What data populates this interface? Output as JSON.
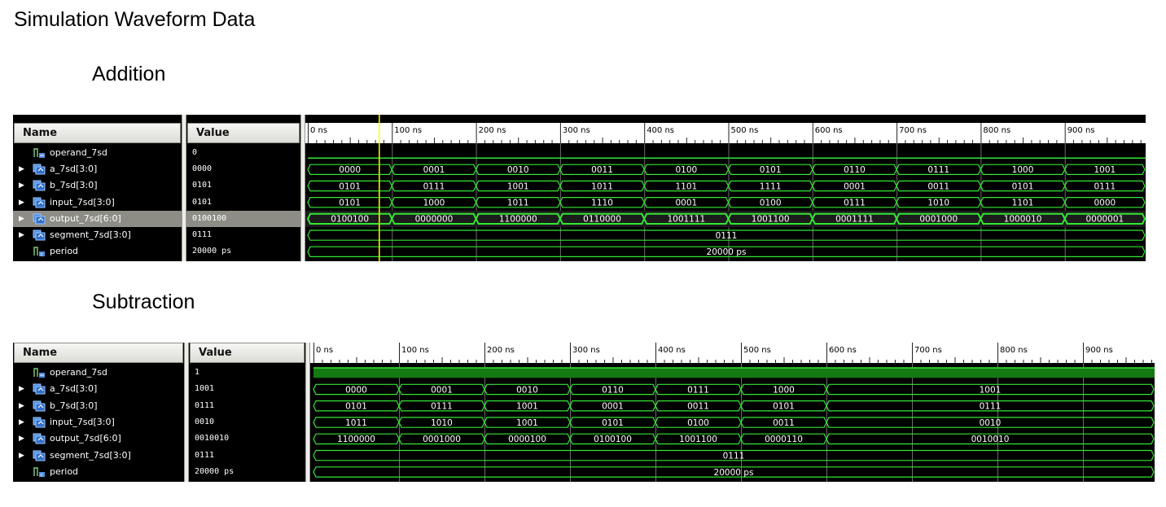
{
  "document_title": "Simulation Waveform Data",
  "columns": {
    "name": "Name",
    "value": "Value"
  },
  "timeline": [
    "0 ns",
    "100 ns",
    "200 ns",
    "300 ns",
    "400 ns",
    "500 ns",
    "600 ns",
    "700 ns",
    "800 ns",
    "900 ns"
  ],
  "colors": {
    "waveform": "#33e633",
    "cursor": "#ffff00",
    "background": "#000000",
    "grid": "#6e6e6e"
  },
  "panels": [
    {
      "id": "addition",
      "title": "Addition",
      "cursor_time_ns": 85,
      "signals": [
        {
          "name": "operand_7sd",
          "value": "0",
          "bus": false,
          "selected": false,
          "icon": "logic-signal-icon",
          "waveform": {
            "type": "logic",
            "level": 0
          }
        },
        {
          "name": "a_7sd[3:0]",
          "value": "0000",
          "bus": true,
          "selected": false,
          "icon": "bus-signal-icon",
          "waveform": {
            "type": "bus",
            "segments": [
              {
                "start": 0,
                "end": 100,
                "label": "0000"
              },
              {
                "start": 100,
                "end": 200,
                "label": "0001"
              },
              {
                "start": 200,
                "end": 300,
                "label": "0010"
              },
              {
                "start": 300,
                "end": 400,
                "label": "0011"
              },
              {
                "start": 400,
                "end": 500,
                "label": "0100"
              },
              {
                "start": 500,
                "end": 600,
                "label": "0101"
              },
              {
                "start": 600,
                "end": 700,
                "label": "0110"
              },
              {
                "start": 700,
                "end": 800,
                "label": "0111"
              },
              {
                "start": 800,
                "end": 900,
                "label": "1000"
              },
              {
                "start": 900,
                "end": 1000,
                "label": "1001"
              }
            ]
          }
        },
        {
          "name": "b_7sd[3:0]",
          "value": "0101",
          "bus": true,
          "selected": false,
          "icon": "bus-signal-icon",
          "waveform": {
            "type": "bus",
            "segments": [
              {
                "start": 0,
                "end": 100,
                "label": "0101"
              },
              {
                "start": 100,
                "end": 200,
                "label": "0111"
              },
              {
                "start": 200,
                "end": 300,
                "label": "1001"
              },
              {
                "start": 300,
                "end": 400,
                "label": "1011"
              },
              {
                "start": 400,
                "end": 500,
                "label": "1101"
              },
              {
                "start": 500,
                "end": 600,
                "label": "1111"
              },
              {
                "start": 600,
                "end": 700,
                "label": "0001"
              },
              {
                "start": 700,
                "end": 800,
                "label": "0011"
              },
              {
                "start": 800,
                "end": 900,
                "label": "0101"
              },
              {
                "start": 900,
                "end": 1000,
                "label": "0111"
              }
            ]
          }
        },
        {
          "name": "input_7sd[3:0]",
          "value": "0101",
          "bus": true,
          "selected": false,
          "icon": "bus-signal-icon",
          "waveform": {
            "type": "bus",
            "segments": [
              {
                "start": 0,
                "end": 100,
                "label": "0101"
              },
              {
                "start": 100,
                "end": 200,
                "label": "1000"
              },
              {
                "start": 200,
                "end": 300,
                "label": "1011"
              },
              {
                "start": 300,
                "end": 400,
                "label": "1110"
              },
              {
                "start": 400,
                "end": 500,
                "label": "0001"
              },
              {
                "start": 500,
                "end": 600,
                "label": "0100"
              },
              {
                "start": 600,
                "end": 700,
                "label": "0111"
              },
              {
                "start": 700,
                "end": 800,
                "label": "1010"
              },
              {
                "start": 800,
                "end": 900,
                "label": "1101"
              },
              {
                "start": 900,
                "end": 1000,
                "label": "0000"
              }
            ]
          }
        },
        {
          "name": "output_7sd[6:0]",
          "value": "0100100",
          "bus": true,
          "selected": true,
          "icon": "bus-signal-icon",
          "waveform": {
            "type": "bus",
            "bold": true,
            "segments": [
              {
                "start": 0,
                "end": 100,
                "label": "0100100"
              },
              {
                "start": 100,
                "end": 200,
                "label": "0000000"
              },
              {
                "start": 200,
                "end": 300,
                "label": "1100000"
              },
              {
                "start": 300,
                "end": 400,
                "label": "0110000"
              },
              {
                "start": 400,
                "end": 500,
                "label": "1001111"
              },
              {
                "start": 500,
                "end": 600,
                "label": "1001100"
              },
              {
                "start": 600,
                "end": 700,
                "label": "0001111"
              },
              {
                "start": 700,
                "end": 800,
                "label": "0001000"
              },
              {
                "start": 800,
                "end": 900,
                "label": "1000010"
              },
              {
                "start": 900,
                "end": 1000,
                "label": "0000001"
              }
            ]
          }
        },
        {
          "name": "segment_7sd[3:0]",
          "value": "0111",
          "bus": true,
          "selected": false,
          "icon": "bus-signal-icon",
          "waveform": {
            "type": "bus",
            "segments": [
              {
                "start": 0,
                "end": 1000,
                "label": "0111"
              }
            ]
          }
        },
        {
          "name": "period",
          "value": "20000 ps",
          "bus": false,
          "selected": false,
          "icon": "constant-signal-icon",
          "waveform": {
            "type": "bus",
            "segments": [
              {
                "start": 0,
                "end": 1000,
                "label": "20000 ps"
              }
            ]
          }
        }
      ]
    },
    {
      "id": "subtraction",
      "title": "Subtraction",
      "cursor_time_ns": null,
      "signals": [
        {
          "name": "operand_7sd",
          "value": "1",
          "bus": false,
          "selected": false,
          "icon": "logic-signal-icon",
          "waveform": {
            "type": "logic",
            "level": 1
          }
        },
        {
          "name": "a_7sd[3:0]",
          "value": "1001",
          "bus": true,
          "selected": false,
          "icon": "bus-signal-icon",
          "waveform": {
            "type": "bus",
            "segments": [
              {
                "start": 0,
                "end": 100,
                "label": "0000"
              },
              {
                "start": 100,
                "end": 200,
                "label": "0001"
              },
              {
                "start": 200,
                "end": 300,
                "label": "0010"
              },
              {
                "start": 300,
                "end": 400,
                "label": "0110"
              },
              {
                "start": 400,
                "end": 500,
                "label": "0111"
              },
              {
                "start": 500,
                "end": 600,
                "label": "1000"
              },
              {
                "start": 600,
                "end": 1000,
                "label": "1001"
              }
            ]
          }
        },
        {
          "name": "b_7sd[3:0]",
          "value": "0111",
          "bus": true,
          "selected": false,
          "icon": "bus-signal-icon",
          "waveform": {
            "type": "bus",
            "segments": [
              {
                "start": 0,
                "end": 100,
                "label": "0101"
              },
              {
                "start": 100,
                "end": 200,
                "label": "0111"
              },
              {
                "start": 200,
                "end": 300,
                "label": "1001"
              },
              {
                "start": 300,
                "end": 400,
                "label": "0001"
              },
              {
                "start": 400,
                "end": 500,
                "label": "0011"
              },
              {
                "start": 500,
                "end": 600,
                "label": "0101"
              },
              {
                "start": 600,
                "end": 1000,
                "label": "0111"
              }
            ]
          }
        },
        {
          "name": "input_7sd[3:0]",
          "value": "0010",
          "bus": true,
          "selected": false,
          "icon": "bus-signal-icon",
          "waveform": {
            "type": "bus",
            "segments": [
              {
                "start": 0,
                "end": 100,
                "label": "1011"
              },
              {
                "start": 100,
                "end": 200,
                "label": "1010"
              },
              {
                "start": 200,
                "end": 300,
                "label": "1001"
              },
              {
                "start": 300,
                "end": 400,
                "label": "0101"
              },
              {
                "start": 400,
                "end": 500,
                "label": "0100"
              },
              {
                "start": 500,
                "end": 600,
                "label": "0011"
              },
              {
                "start": 600,
                "end": 1000,
                "label": "0010"
              }
            ]
          }
        },
        {
          "name": "output_7sd[6:0]",
          "value": "0010010",
          "bus": true,
          "selected": false,
          "icon": "bus-signal-icon",
          "waveform": {
            "type": "bus",
            "segments": [
              {
                "start": 0,
                "end": 100,
                "label": "1100000"
              },
              {
                "start": 100,
                "end": 200,
                "label": "0001000"
              },
              {
                "start": 200,
                "end": 300,
                "label": "0000100"
              },
              {
                "start": 300,
                "end": 400,
                "label": "0100100"
              },
              {
                "start": 400,
                "end": 500,
                "label": "1001100"
              },
              {
                "start": 500,
                "end": 600,
                "label": "0000110"
              },
              {
                "start": 600,
                "end": 1000,
                "label": "0010010"
              }
            ]
          }
        },
        {
          "name": "segment_7sd[3:0]",
          "value": "0111",
          "bus": true,
          "selected": false,
          "icon": "bus-signal-icon",
          "waveform": {
            "type": "bus",
            "segments": [
              {
                "start": 0,
                "end": 1000,
                "label": "0111"
              }
            ]
          }
        },
        {
          "name": "period",
          "value": "20000 ps",
          "bus": false,
          "selected": false,
          "icon": "constant-signal-icon",
          "waveform": {
            "type": "bus",
            "segments": [
              {
                "start": 0,
                "end": 1000,
                "label": "20000 ps"
              }
            ]
          }
        }
      ]
    }
  ]
}
